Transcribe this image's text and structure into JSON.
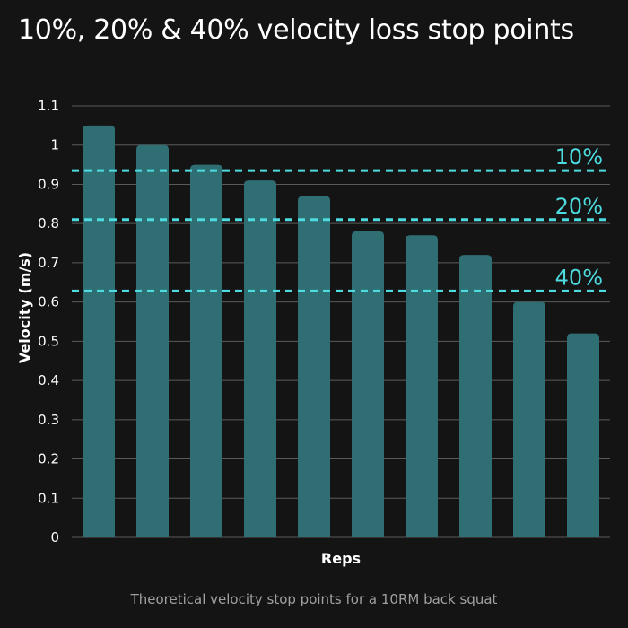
{
  "title": "10%, 20% & 40% velocity loss stop points",
  "caption": "Theoretical velocity stop points for a 10RM back squat",
  "colors": {
    "background": "#141414",
    "bar": "#2f6e73",
    "reference_line": "#4ddbdf",
    "grid": "#5a5a5a",
    "text": "#ffffff",
    "caption": "#a0a0a0"
  },
  "chart_data": {
    "type": "bar",
    "categories": [
      "",
      "",
      "",
      "",
      "",
      "",
      "",
      "",
      "",
      ""
    ],
    "values": [
      1.05,
      1.0,
      0.95,
      0.91,
      0.87,
      0.78,
      0.77,
      0.72,
      0.6,
      0.52
    ],
    "xlabel": "Reps",
    "ylabel": "Velocity (m/s)",
    "ylim": [
      0,
      1.1
    ],
    "yticks": [
      "0",
      "0.1",
      "0.2",
      "0.3",
      "0.4",
      "0.5",
      "0.6",
      "0.7",
      "0.8",
      "0.9",
      "1",
      "1.1"
    ],
    "grid": true,
    "reference_lines": [
      {
        "label": "10%",
        "value": 0.935
      },
      {
        "label": "20%",
        "value": 0.81
      },
      {
        "label": "40%",
        "value": 0.628
      }
    ]
  }
}
